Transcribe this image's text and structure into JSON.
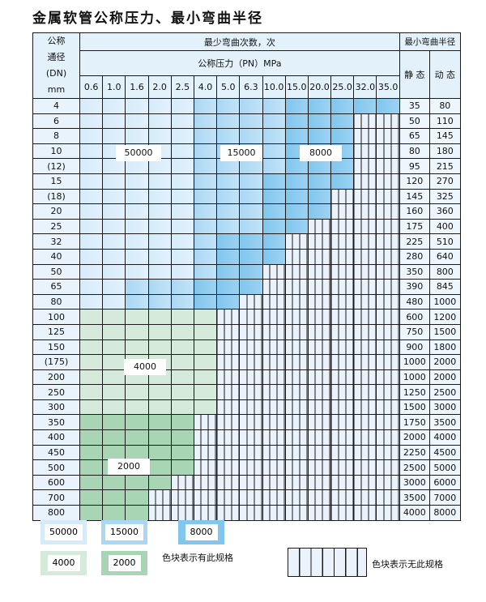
{
  "title": "金属软管公称压力、最小弯曲半径",
  "header": {
    "dn_label": [
      "公称",
      "通径",
      "(DN)",
      "mm"
    ],
    "cycles_label": "最少弯曲次数，次",
    "pressure_label": "公称压力（PN）MPa",
    "radius_label": "最小弯曲半径",
    "static_label": "静 态",
    "dynamic_label": "动 态",
    "pressures": [
      "0.6",
      "1.0",
      "1.6",
      "2.0",
      "2.5",
      "4.0",
      "5.0",
      "6.3",
      "10.0",
      "15.0",
      "20.0",
      "25.0",
      "32.0",
      "35.0"
    ]
  },
  "colors": {
    "L": "#d6ebfa",
    "M": "#a9d7f4",
    "D": "#80c6ee",
    "GL": "#d5eadb",
    "GD": "#a8d6b4",
    "empty": "#eaf3fb"
  },
  "rows": [
    {
      "dn": "4",
      "static": "35",
      "dynamic": "80",
      "cells": "L,L,L,L,L,M,M,M,M,D,D,D,D,D"
    },
    {
      "dn": "6",
      "static": "50",
      "dynamic": "110",
      "cells": "L,L,L,L,L,M,M,M,M,D,D,D"
    },
    {
      "dn": "8",
      "static": "65",
      "dynamic": "145",
      "cells": "L,L,L,L,L,M,M,M,M,D,D,D"
    },
    {
      "dn": "10",
      "static": "80",
      "dynamic": "180",
      "cells": "L,L,L,L,L,M,M,M,M,D,D,D"
    },
    {
      "dn": "(12)",
      "static": "95",
      "dynamic": "215",
      "cells": "L,L,L,L,L,M,M,M,M,D,D,D"
    },
    {
      "dn": "15",
      "static": "120",
      "dynamic": "270",
      "cells": "L,L,L,L,L,M,M,M,D,D,D,D"
    },
    {
      "dn": "(18)",
      "static": "145",
      "dynamic": "325",
      "cells": "L,L,L,L,L,M,M,M,D,D,D"
    },
    {
      "dn": "20",
      "static": "160",
      "dynamic": "360",
      "cells": "L,L,L,L,L,M,M,M,D,D,D"
    },
    {
      "dn": "25",
      "static": "175",
      "dynamic": "400",
      "cells": "L,L,L,L,L,M,M,M,D,D"
    },
    {
      "dn": "32",
      "static": "225",
      "dynamic": "510",
      "cells": "L,L,L,L,L,M,D,D,D"
    },
    {
      "dn": "40",
      "static": "280",
      "dynamic": "640",
      "cells": "L,L,L,L,L,M,D,D,D"
    },
    {
      "dn": "50",
      "static": "350",
      "dynamic": "800",
      "cells": "L,L,L,L,L,M,D,D"
    },
    {
      "dn": "65",
      "static": "390",
      "dynamic": "845",
      "cells": "L,L,M,M,M,D,D,D"
    },
    {
      "dn": "80",
      "static": "480",
      "dynamic": "1000",
      "cells": "L,L,M,M,M,D,D"
    },
    {
      "dn": "100",
      "static": "600",
      "dynamic": "1200",
      "cells": "GL,GL,GL,GL,GL,GL"
    },
    {
      "dn": "125",
      "static": "750",
      "dynamic": "1500",
      "cells": "GL,GL,GL,GL,GL,GL"
    },
    {
      "dn": "150",
      "static": "900",
      "dynamic": "1800",
      "cells": "GL,GL,GL,GL,GL,GL"
    },
    {
      "dn": "(175)",
      "static": "1000",
      "dynamic": "2000",
      "cells": "GL,GL,GL,GL,GL,GL"
    },
    {
      "dn": "200",
      "static": "1000",
      "dynamic": "2000",
      "cells": "GL,GL,GL,GL,GL,GL"
    },
    {
      "dn": "250",
      "static": "1250",
      "dynamic": "2500",
      "cells": "GL,GL,GL,GL,GL,GL"
    },
    {
      "dn": "300",
      "static": "1500",
      "dynamic": "3000",
      "cells": "GL,GL,GL,GL,GL,GL"
    },
    {
      "dn": "350",
      "static": "1750",
      "dynamic": "3500",
      "cells": "GD,GD,GD,GD,GD"
    },
    {
      "dn": "400",
      "static": "2000",
      "dynamic": "4000",
      "cells": "GD,GD,GD,GD,GD"
    },
    {
      "dn": "450",
      "static": "2250",
      "dynamic": "4500",
      "cells": "GD,GD,GD,GD,GD"
    },
    {
      "dn": "500",
      "static": "2500",
      "dynamic": "5000",
      "cells": "GD,GD,GD,GD,GD"
    },
    {
      "dn": "600",
      "static": "3000",
      "dynamic": "6000",
      "cells": "GD,GD,GD,GD"
    },
    {
      "dn": "700",
      "static": "3500",
      "dynamic": "7000",
      "cells": "GD,GD,GD"
    },
    {
      "dn": "800",
      "static": "4000",
      "dynamic": "8000",
      "cells": "GD,GD,GD"
    }
  ],
  "zone_labels": {
    "z50000": "50000",
    "z15000": "15000",
    "z8000": "8000",
    "z4000": "4000",
    "z2000": "2000"
  },
  "legend": {
    "l50000": "50000",
    "l15000": "15000",
    "l8000": "8000",
    "l4000": "4000",
    "l2000": "2000",
    "has_spec": "色块表示有此规格",
    "no_spec": "色块表示无此规格"
  }
}
